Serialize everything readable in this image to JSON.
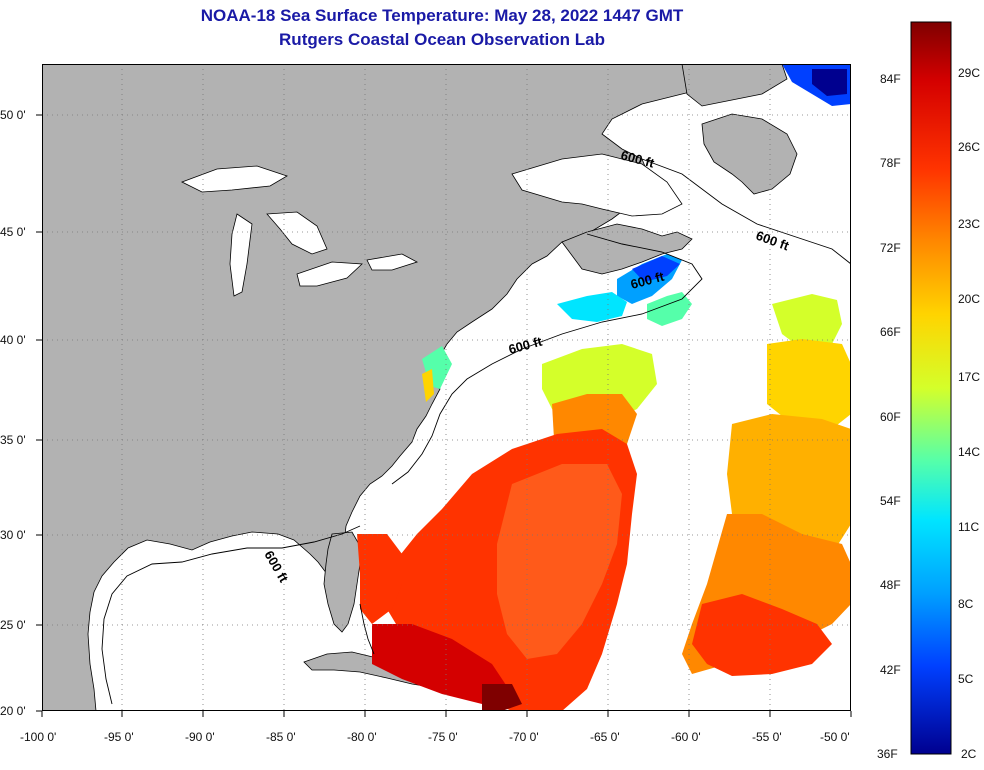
{
  "title": {
    "line1": "NOAA-18 Sea Surface Temperature:  May 28, 2022 1447 GMT",
    "line2": "Rutgers Coastal Ocean Observation Lab"
  },
  "axes": {
    "x_ticks": [
      "-100 0'",
      "-95 0'",
      "-90 0'",
      "-85 0'",
      "-80 0'",
      "-75 0'",
      "-70 0'",
      "-65 0'",
      "-60 0'",
      "-55 0'",
      "-50 0'"
    ],
    "y_ticks": [
      "50 0'",
      "45 0'",
      "40 0'",
      "35 0'",
      "30 0'",
      "25 0'",
      "20 0'"
    ]
  },
  "contours": {
    "label": "600 ft",
    "labels": [
      "600 ft",
      "600 ft",
      "600 ft",
      "600 ft",
      "600 ft"
    ]
  },
  "colorbar": {
    "f_labels": [
      "84F",
      "78F",
      "72F",
      "66F",
      "60F",
      "54F",
      "48F",
      "42F",
      "36F"
    ],
    "c_labels": [
      "29C",
      "26C",
      "23C",
      "20C",
      "17C",
      "14C",
      "11C",
      "8C",
      "5C",
      "2C"
    ],
    "colors": [
      "#7f0000",
      "#d40000",
      "#ff3300",
      "#ff8800",
      "#ffd400",
      "#d4ff2a",
      "#55ffaa",
      "#00e5ff",
      "#00a0ff",
      "#0040ff",
      "#00008f"
    ]
  },
  "colors": {
    "land": "#b2b2b2",
    "ocean": "#ffffff",
    "title": "#1a1aa6"
  }
}
